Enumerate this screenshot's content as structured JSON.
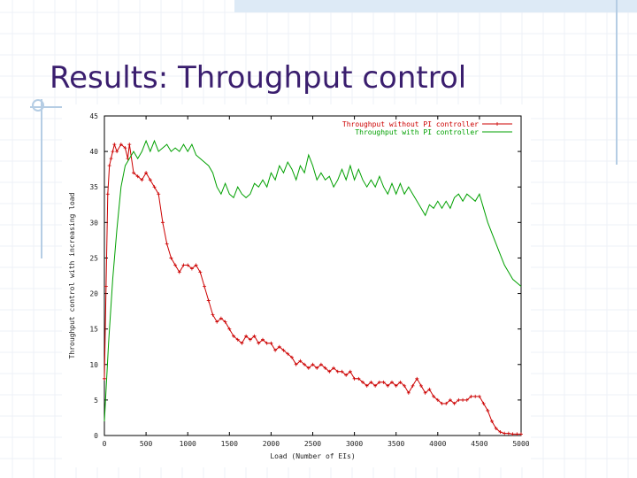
{
  "slide": {
    "title": "Results: Throughput control"
  },
  "colors": {
    "title": "#3a1e6e",
    "accent": "#b5cde4",
    "series_without": "#cc0000",
    "series_with": "#00a000"
  },
  "chart_data": {
    "type": "line",
    "title": "",
    "xlabel": "Load (Number of EIs)",
    "ylabel": "Throughput control with increasing load",
    "xlim": [
      0,
      5000
    ],
    "ylim": [
      0,
      45
    ],
    "xticks": [
      0,
      500,
      1000,
      1500,
      2000,
      2500,
      3000,
      3500,
      4000,
      4500,
      5000
    ],
    "yticks": [
      0,
      5,
      10,
      15,
      20,
      25,
      30,
      35,
      40,
      45
    ],
    "grid": false,
    "legend_position": "top-right",
    "series": [
      {
        "name": "Throughput without PI controller",
        "color": "#cc0000",
        "marker": "plus",
        "points": [
          [
            0,
            8
          ],
          [
            20,
            21
          ],
          [
            40,
            34
          ],
          [
            60,
            38
          ],
          [
            80,
            39
          ],
          [
            100,
            40
          ],
          [
            120,
            41
          ],
          [
            150,
            40
          ],
          [
            200,
            41
          ],
          [
            250,
            40.5
          ],
          [
            280,
            39
          ],
          [
            300,
            41
          ],
          [
            350,
            37
          ],
          [
            400,
            36.5
          ],
          [
            450,
            36
          ],
          [
            500,
            37
          ],
          [
            550,
            36
          ],
          [
            600,
            35
          ],
          [
            650,
            34
          ],
          [
            700,
            30
          ],
          [
            750,
            27
          ],
          [
            800,
            25
          ],
          [
            850,
            24
          ],
          [
            900,
            23
          ],
          [
            950,
            24
          ],
          [
            1000,
            24
          ],
          [
            1050,
            23.5
          ],
          [
            1100,
            24
          ],
          [
            1150,
            23
          ],
          [
            1200,
            21
          ],
          [
            1250,
            19
          ],
          [
            1300,
            17
          ],
          [
            1350,
            16
          ],
          [
            1400,
            16.5
          ],
          [
            1450,
            16
          ],
          [
            1500,
            15
          ],
          [
            1550,
            14
          ],
          [
            1600,
            13.5
          ],
          [
            1650,
            13
          ],
          [
            1700,
            14
          ],
          [
            1750,
            13.5
          ],
          [
            1800,
            14
          ],
          [
            1850,
            13
          ],
          [
            1900,
            13.5
          ],
          [
            1950,
            13
          ],
          [
            2000,
            13
          ],
          [
            2050,
            12
          ],
          [
            2100,
            12.5
          ],
          [
            2150,
            12
          ],
          [
            2200,
            11.5
          ],
          [
            2250,
            11
          ],
          [
            2300,
            10
          ],
          [
            2350,
            10.5
          ],
          [
            2400,
            10
          ],
          [
            2450,
            9.5
          ],
          [
            2500,
            10
          ],
          [
            2550,
            9.5
          ],
          [
            2600,
            10
          ],
          [
            2650,
            9.5
          ],
          [
            2700,
            9
          ],
          [
            2750,
            9.5
          ],
          [
            2800,
            9
          ],
          [
            2850,
            9
          ],
          [
            2900,
            8.5
          ],
          [
            2950,
            9
          ],
          [
            3000,
            8
          ],
          [
            3050,
            8
          ],
          [
            3100,
            7.5
          ],
          [
            3150,
            7
          ],
          [
            3200,
            7.5
          ],
          [
            3250,
            7
          ],
          [
            3300,
            7.5
          ],
          [
            3350,
            7.5
          ],
          [
            3400,
            7
          ],
          [
            3450,
            7.5
          ],
          [
            3500,
            7
          ],
          [
            3550,
            7.5
          ],
          [
            3600,
            7
          ],
          [
            3650,
            6
          ],
          [
            3700,
            7
          ],
          [
            3750,
            8
          ],
          [
            3800,
            7
          ],
          [
            3850,
            6
          ],
          [
            3900,
            6.5
          ],
          [
            3950,
            5.5
          ],
          [
            4000,
            5
          ],
          [
            4050,
            4.5
          ],
          [
            4100,
            4.5
          ],
          [
            4150,
            5
          ],
          [
            4200,
            4.5
          ],
          [
            4250,
            5
          ],
          [
            4300,
            5
          ],
          [
            4350,
            5
          ],
          [
            4400,
            5.5
          ],
          [
            4450,
            5.5
          ],
          [
            4500,
            5.5
          ],
          [
            4550,
            4.5
          ],
          [
            4600,
            3.5
          ],
          [
            4650,
            2
          ],
          [
            4700,
            1
          ],
          [
            4750,
            0.5
          ],
          [
            4800,
            0.3
          ],
          [
            4850,
            0.3
          ],
          [
            4900,
            0.2
          ],
          [
            4950,
            0.2
          ],
          [
            5000,
            0.2
          ]
        ]
      },
      {
        "name": "Throughput with PI controller",
        "color": "#00a000",
        "marker": "none",
        "points": [
          [
            0,
            2
          ],
          [
            50,
            13
          ],
          [
            100,
            22
          ],
          [
            150,
            29
          ],
          [
            200,
            35
          ],
          [
            250,
            38
          ],
          [
            300,
            39
          ],
          [
            350,
            40
          ],
          [
            400,
            39
          ],
          [
            450,
            40
          ],
          [
            500,
            41.5
          ],
          [
            550,
            40
          ],
          [
            600,
            41.5
          ],
          [
            650,
            40
          ],
          [
            700,
            40.5
          ],
          [
            750,
            41
          ],
          [
            800,
            40
          ],
          [
            850,
            40.5
          ],
          [
            900,
            40
          ],
          [
            950,
            41
          ],
          [
            1000,
            40
          ],
          [
            1050,
            41
          ],
          [
            1100,
            39.5
          ],
          [
            1150,
            39
          ],
          [
            1200,
            38.5
          ],
          [
            1250,
            38
          ],
          [
            1300,
            37
          ],
          [
            1350,
            35
          ],
          [
            1400,
            34
          ],
          [
            1450,
            35.5
          ],
          [
            1500,
            34
          ],
          [
            1550,
            33.5
          ],
          [
            1600,
            35
          ],
          [
            1650,
            34
          ],
          [
            1700,
            33.5
          ],
          [
            1750,
            34
          ],
          [
            1800,
            35.5
          ],
          [
            1850,
            35
          ],
          [
            1900,
            36
          ],
          [
            1950,
            35
          ],
          [
            2000,
            37
          ],
          [
            2050,
            36
          ],
          [
            2100,
            38
          ],
          [
            2150,
            37
          ],
          [
            2200,
            38.5
          ],
          [
            2250,
            37.5
          ],
          [
            2300,
            36
          ],
          [
            2350,
            38
          ],
          [
            2400,
            37
          ],
          [
            2450,
            39.5
          ],
          [
            2500,
            38
          ],
          [
            2550,
            36
          ],
          [
            2600,
            37
          ],
          [
            2650,
            36
          ],
          [
            2700,
            36.5
          ],
          [
            2750,
            35
          ],
          [
            2800,
            36
          ],
          [
            2850,
            37.5
          ],
          [
            2900,
            36
          ],
          [
            2950,
            38
          ],
          [
            3000,
            36
          ],
          [
            3050,
            37.5
          ],
          [
            3100,
            36
          ],
          [
            3150,
            35
          ],
          [
            3200,
            36
          ],
          [
            3250,
            35
          ],
          [
            3300,
            36.5
          ],
          [
            3350,
            35
          ],
          [
            3400,
            34
          ],
          [
            3450,
            35.5
          ],
          [
            3500,
            34
          ],
          [
            3550,
            35.5
          ],
          [
            3600,
            34
          ],
          [
            3650,
            35
          ],
          [
            3700,
            34
          ],
          [
            3750,
            33
          ],
          [
            3800,
            32
          ],
          [
            3850,
            31
          ],
          [
            3900,
            32.5
          ],
          [
            3950,
            32
          ],
          [
            4000,
            33
          ],
          [
            4050,
            32
          ],
          [
            4100,
            33
          ],
          [
            4150,
            32
          ],
          [
            4200,
            33.5
          ],
          [
            4250,
            34
          ],
          [
            4300,
            33
          ],
          [
            4350,
            34
          ],
          [
            4400,
            33.5
          ],
          [
            4450,
            33
          ],
          [
            4500,
            34
          ],
          [
            4550,
            32
          ],
          [
            4600,
            30
          ],
          [
            4650,
            28.5
          ],
          [
            4700,
            27
          ],
          [
            4750,
            25.5
          ],
          [
            4800,
            24
          ],
          [
            4850,
            23
          ],
          [
            4900,
            22
          ],
          [
            4950,
            21.5
          ],
          [
            5000,
            21
          ]
        ]
      }
    ]
  }
}
